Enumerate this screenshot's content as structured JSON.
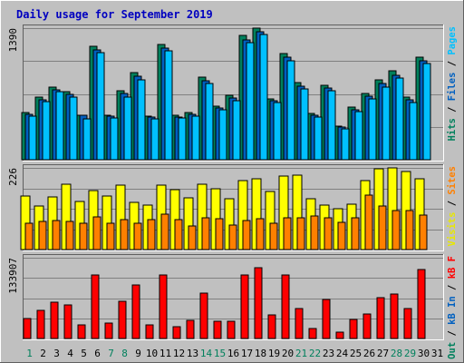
{
  "title": "Daily usage for September 2019",
  "colors": {
    "outer_bg": "#c0c0c0",
    "plot_bg": "#c0c0c0",
    "grid": "#808080",
    "title_color": "#0000c0",
    "hits": "#00805c",
    "files": "#0060c0",
    "pages": "#00c0ff",
    "visits": "#ffff00",
    "sites": "#ff8000",
    "kbytes": "#ff0000",
    "weekend_day": "#00805c",
    "weekday": "#000000"
  },
  "panels": {
    "top": {
      "ymax_label": "1390",
      "legend": [
        {
          "text": "Hits",
          "color": "#00805c"
        },
        {
          "text": " / ",
          "color": "#000000"
        },
        {
          "text": "Files",
          "color": "#0060c0"
        },
        {
          "text": " / ",
          "color": "#000000"
        },
        {
          "text": "Pages",
          "color": "#00c0ff"
        }
      ]
    },
    "middle": {
      "ymax_label": "226",
      "legend": [
        {
          "text": "Visits",
          "color": "#e8e800"
        },
        {
          "text": " / ",
          "color": "#000000"
        },
        {
          "text": "Sites",
          "color": "#ff8000"
        }
      ]
    },
    "bottom": {
      "ymax_label": "133907",
      "legend": [
        {
          "text": "kB Out",
          "color": "#00805c"
        },
        {
          "text": " / ",
          "color": "#000000"
        },
        {
          "text": "kB In",
          "color": "#0060c0"
        },
        {
          "text": " / ",
          "color": "#000000"
        },
        {
          "text": "kB F",
          "color": "#ff0000"
        }
      ]
    }
  },
  "chart_data": {
    "type": "bar",
    "title": "Daily usage for September 2019",
    "categories": [
      "1",
      "2",
      "3",
      "4",
      "5",
      "6",
      "7",
      "8",
      "9",
      "10",
      "11",
      "12",
      "13",
      "14",
      "15",
      "16",
      "17",
      "18",
      "19",
      "20",
      "21",
      "22",
      "23",
      "24",
      "25",
      "26",
      "27",
      "28",
      "29",
      "30",
      "31"
    ],
    "weekend_days": [
      "1",
      "7",
      "8",
      "14",
      "15",
      "21",
      "22",
      "28",
      "29"
    ],
    "panels": [
      {
        "name": "top",
        "ymax": 1390,
        "series": [
          {
            "name": "Hits",
            "color": "#00805c",
            "values": [
              499,
              666,
              768,
              717,
              474,
              1203,
              472,
              725,
              918,
              461,
              1222,
              470,
              498,
              876,
              566,
              679,
              1311,
              1390,
              645,
              1121,
              811,
              490,
              789,
              357,
              553,
              701,
              844,
              935,
              659,
              1088,
              0
            ]
          },
          {
            "name": "Files",
            "color": "#0060c0",
            "values": [
              484,
              637,
              741,
              694,
              469,
              1159,
              459,
              696,
              880,
              451,
              1182,
              453,
              477,
              838,
              547,
              653,
              1265,
              1354,
              623,
              1079,
              774,
              471,
              756,
              346,
              530,
              673,
              802,
              896,
              628,
              1048,
              0
            ]
          },
          {
            "name": "Pages",
            "color": "#00c0ff",
            "values": [
              459,
              613,
              716,
              659,
              435,
              1129,
              437,
              666,
              846,
              429,
              1146,
              438,
              457,
              807,
              524,
              623,
              1234,
              1323,
              600,
              1042,
              743,
              449,
              726,
              330,
              507,
              640,
              771,
              863,
              606,
              1015,
              0
            ]
          }
        ]
      },
      {
        "name": "middle",
        "ymax": 226,
        "series": [
          {
            "name": "Visits",
            "color": "#ffff00",
            "values": [
              148,
              121,
              145,
              180,
              134,
              163,
              148,
              179,
              130,
              124,
              179,
              166,
              143,
              180,
              167,
              140,
              192,
              197,
              160,
              203,
              206,
              141,
              124,
              112,
              126,
              190,
              224,
              226,
              216,
              197,
              0
            ]
          },
          {
            "name": "Sites",
            "color": "#ff8000",
            "values": [
              73,
              78,
              81,
              77,
              74,
              91,
              74,
              84,
              73,
              82,
              97,
              83,
              66,
              87,
              85,
              68,
              80,
              86,
              73,
              87,
              87,
              92,
              87,
              75,
              89,
              151,
              120,
              108,
              107,
              95,
              0
            ]
          }
        ]
      },
      {
        "name": "bottom",
        "ymax": 133907,
        "series": [
          {
            "name": "kB F",
            "color": "#ff0000",
            "values": [
              33000,
              47000,
              60000,
              55000,
              22000,
              105000,
              26000,
              62000,
              89000,
              22000,
              106000,
              19000,
              30000,
              75000,
              29000,
              28000,
              106000,
              118000,
              39000,
              106000,
              49000,
              17000,
              64000,
              10000,
              32000,
              40000,
              67000,
              73000,
              49000,
              114000,
              0
            ]
          }
        ]
      }
    ]
  }
}
